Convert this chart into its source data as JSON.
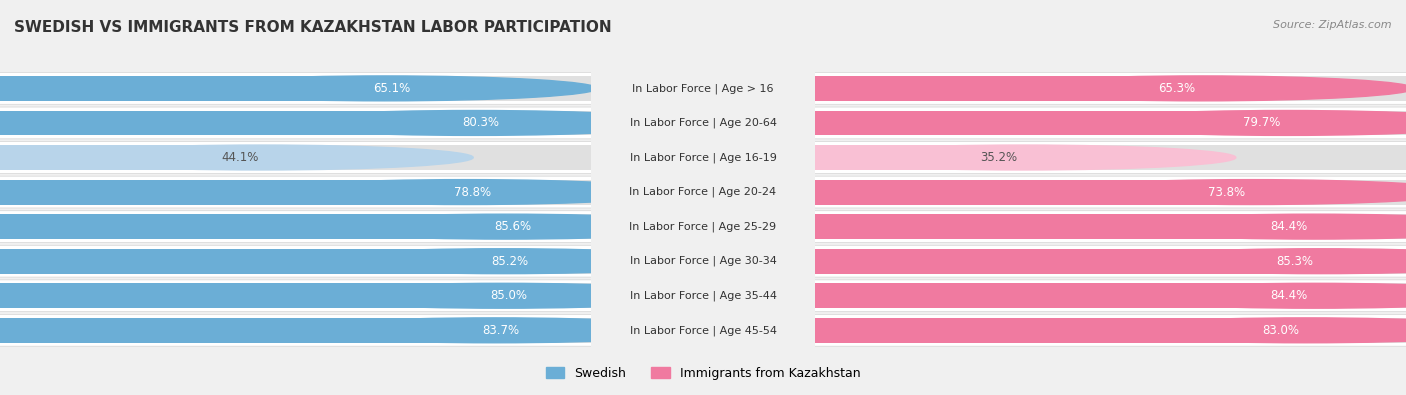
{
  "title": "SWEDISH VS IMMIGRANTS FROM KAZAKHSTAN LABOR PARTICIPATION",
  "source": "Source: ZipAtlas.com",
  "categories": [
    "In Labor Force | Age > 16",
    "In Labor Force | Age 20-64",
    "In Labor Force | Age 16-19",
    "In Labor Force | Age 20-24",
    "In Labor Force | Age 25-29",
    "In Labor Force | Age 30-34",
    "In Labor Force | Age 35-44",
    "In Labor Force | Age 45-54"
  ],
  "swedish_values": [
    65.1,
    80.3,
    44.1,
    78.8,
    85.6,
    85.2,
    85.0,
    83.7
  ],
  "kazakhstan_values": [
    65.3,
    79.7,
    35.2,
    73.8,
    84.4,
    85.3,
    84.4,
    83.0
  ],
  "swedish_color": "#6baed6",
  "kazakhstan_color": "#f07aa0",
  "swedish_light_color": "#b8d4ea",
  "kazakhstan_light_color": "#f9c0d4",
  "bg_color": "#f0f0f0",
  "row_bg_color": "#e8e8e8",
  "row_white_color": "#ffffff",
  "max_value": 100.0,
  "bar_height": 0.72,
  "legend_swedish": "Swedish",
  "legend_kazakhstan": "Immigrants from Kazakhstan",
  "title_fontsize": 11,
  "label_fontsize": 8.5,
  "cat_fontsize": 8
}
